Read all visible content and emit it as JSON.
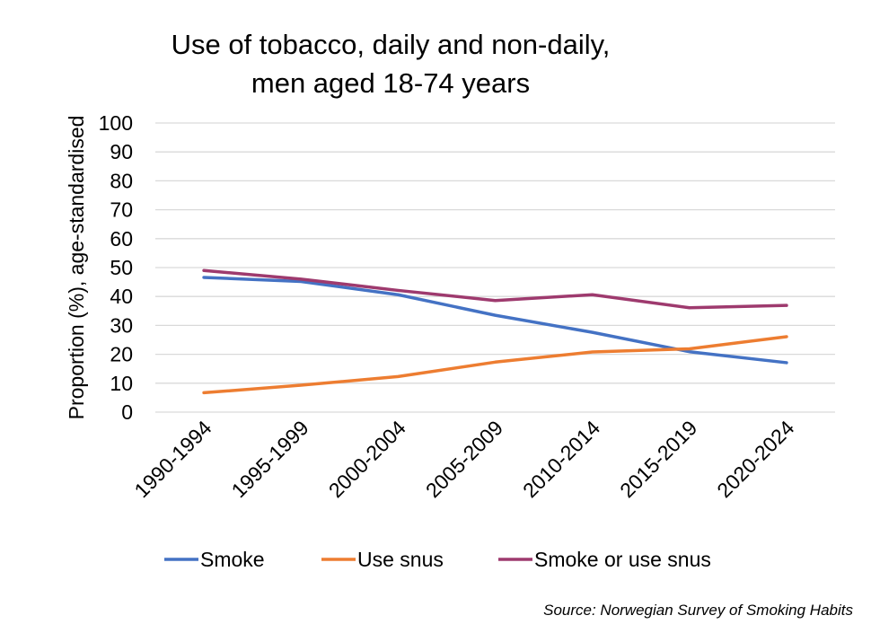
{
  "chart_data": {
    "type": "line",
    "title": [
      "Use of tobacco, daily and non-daily,",
      "men aged 18-74 years"
    ],
    "ylabel": "Proportion (%), age-standardised",
    "xlabel": "",
    "ylim": [
      0,
      100
    ],
    "yticks": [
      0,
      10,
      20,
      30,
      40,
      50,
      60,
      70,
      80,
      90,
      100
    ],
    "grid": true,
    "legend": "bottom",
    "categories": [
      "1990-1994",
      "1995-1999",
      "2000-2004",
      "2005-2009",
      "2010-2014",
      "2015-2019",
      "2020-2024"
    ],
    "series": [
      {
        "name": "Smoke",
        "color": "#4472C4",
        "values": [
          46.6,
          45.2,
          40.6,
          33.5,
          27.6,
          20.9,
          17.1
        ]
      },
      {
        "name": "Use snus",
        "color": "#ED7D31",
        "values": [
          6.7,
          9.3,
          12.3,
          17.3,
          20.8,
          21.9,
          26.1
        ]
      },
      {
        "name": "Smoke or use snus",
        "color": "#9E3A6E",
        "values": [
          49.0,
          46.0,
          42.1,
          38.6,
          40.6,
          36.1,
          36.9
        ]
      }
    ],
    "source": "Source: Norwegian Survey of Smoking Habits"
  }
}
